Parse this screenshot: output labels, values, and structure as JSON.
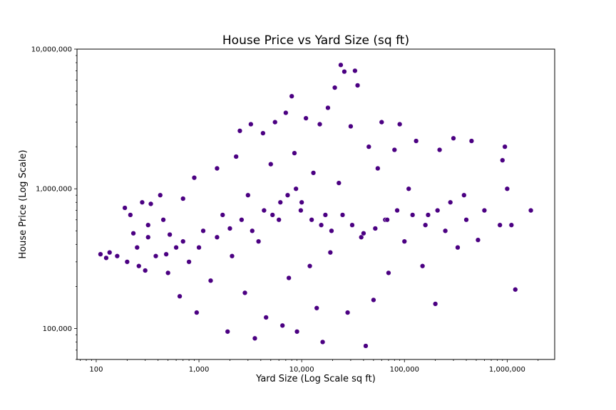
{
  "chart_data": {
    "type": "scatter",
    "title": "House Price vs Yard Size (sq ft)",
    "xlabel": "Yard Size (Log Scale sq ft)",
    "ylabel": "House Price (Log Scale)",
    "xscale": "log",
    "yscale": "log",
    "xlim": [
      65,
      2900000
    ],
    "ylim": [
      60000,
      10000000
    ],
    "grid": false,
    "legend": "none",
    "marker_color": "#4b0082",
    "marker_edge_color": "#ffffff",
    "x_ticks": [
      {
        "value": 100,
        "label": "100"
      },
      {
        "value": 1000,
        "label": "1,000"
      },
      {
        "value": 10000,
        "label": "10,000"
      },
      {
        "value": 100000,
        "label": "100,000"
      },
      {
        "value": 1000000,
        "label": "1,000,000"
      }
    ],
    "y_ticks": [
      {
        "value": 100000,
        "label": "100,000"
      },
      {
        "value": 1000000,
        "label": "1,000,000"
      },
      {
        "value": 10000000,
        "label": "10,000,000"
      }
    ],
    "points": [
      [
        110,
        340000
      ],
      [
        125,
        320000
      ],
      [
        135,
        350000
      ],
      [
        160,
        330000
      ],
      [
        190,
        730000
      ],
      [
        200,
        300000
      ],
      [
        215,
        650000
      ],
      [
        230,
        480000
      ],
      [
        260,
        280000
      ],
      [
        280,
        800000
      ],
      [
        300,
        260000
      ],
      [
        320,
        550000
      ],
      [
        340,
        780000
      ],
      [
        380,
        330000
      ],
      [
        420,
        900000
      ],
      [
        450,
        600000
      ],
      [
        500,
        250000
      ],
      [
        520,
        470000
      ],
      [
        600,
        380000
      ],
      [
        650,
        170000
      ],
      [
        700,
        850000
      ],
      [
        800,
        300000
      ],
      [
        900,
        1200000
      ],
      [
        950,
        130000
      ],
      [
        1100,
        500000
      ],
      [
        1300,
        220000
      ],
      [
        1500,
        1400000
      ],
      [
        1700,
        650000
      ],
      [
        1900,
        95000
      ],
      [
        2100,
        330000
      ],
      [
        2300,
        1700000
      ],
      [
        2500,
        2600000
      ],
      [
        2800,
        180000
      ],
      [
        3000,
        900000
      ],
      [
        3200,
        2900000
      ],
      [
        3500,
        85000
      ],
      [
        3800,
        420000
      ],
      [
        4200,
        2500000
      ],
      [
        4500,
        120000
      ],
      [
        5000,
        1500000
      ],
      [
        5500,
        3000000
      ],
      [
        6000,
        600000
      ],
      [
        6500,
        105000
      ],
      [
        7000,
        3500000
      ],
      [
        7500,
        230000
      ],
      [
        8000,
        4600000
      ],
      [
        8500,
        1800000
      ],
      [
        9000,
        95000
      ],
      [
        10000,
        800000
      ],
      [
        11000,
        3200000
      ],
      [
        12000,
        280000
      ],
      [
        13000,
        1300000
      ],
      [
        14000,
        140000
      ],
      [
        15000,
        2900000
      ],
      [
        16000,
        80000
      ],
      [
        17000,
        650000
      ],
      [
        18000,
        3800000
      ],
      [
        19000,
        350000
      ],
      [
        21000,
        5300000
      ],
      [
        23000,
        1100000
      ],
      [
        24000,
        7700000
      ],
      [
        26000,
        6900000
      ],
      [
        28000,
        130000
      ],
      [
        30000,
        2800000
      ],
      [
        33000,
        7000000
      ],
      [
        35000,
        5500000
      ],
      [
        38000,
        450000
      ],
      [
        42000,
        75000
      ],
      [
        45000,
        2000000
      ],
      [
        50000,
        160000
      ],
      [
        55000,
        1400000
      ],
      [
        60000,
        3000000
      ],
      [
        65000,
        600000
      ],
      [
        70000,
        250000
      ],
      [
        80000,
        1900000
      ],
      [
        90000,
        2900000
      ],
      [
        100000,
        420000
      ],
      [
        110000,
        1000000
      ],
      [
        130000,
        2200000
      ],
      [
        150000,
        280000
      ],
      [
        170000,
        650000
      ],
      [
        200000,
        150000
      ],
      [
        220000,
        1900000
      ],
      [
        250000,
        500000
      ],
      [
        300000,
        2300000
      ],
      [
        330000,
        380000
      ],
      [
        380000,
        900000
      ],
      [
        450000,
        2200000
      ],
      [
        520000,
        430000
      ],
      [
        600000,
        700000
      ],
      [
        850000,
        550000
      ],
      [
        900000,
        1600000
      ],
      [
        950000,
        2000000
      ],
      [
        1000000,
        1000000
      ],
      [
        1100000,
        550000
      ],
      [
        1200000,
        190000
      ],
      [
        1700000,
        700000
      ],
      [
        320,
        450000
      ],
      [
        250,
        380000
      ],
      [
        480,
        340000
      ],
      [
        700,
        420000
      ],
      [
        1000,
        380000
      ],
      [
        1500,
        450000
      ],
      [
        2000,
        520000
      ],
      [
        2600,
        600000
      ],
      [
        3300,
        500000
      ],
      [
        4300,
        700000
      ],
      [
        5200,
        650000
      ],
      [
        6200,
        800000
      ],
      [
        7300,
        900000
      ],
      [
        8800,
        1000000
      ],
      [
        9800,
        700000
      ],
      [
        12500,
        600000
      ],
      [
        15500,
        550000
      ],
      [
        19500,
        500000
      ],
      [
        25000,
        650000
      ],
      [
        31000,
        550000
      ],
      [
        40000,
        480000
      ],
      [
        52000,
        520000
      ],
      [
        68000,
        600000
      ],
      [
        85000,
        700000
      ],
      [
        120000,
        650000
      ],
      [
        160000,
        550000
      ],
      [
        210000,
        700000
      ],
      [
        280000,
        800000
      ],
      [
        400000,
        600000
      ]
    ]
  }
}
